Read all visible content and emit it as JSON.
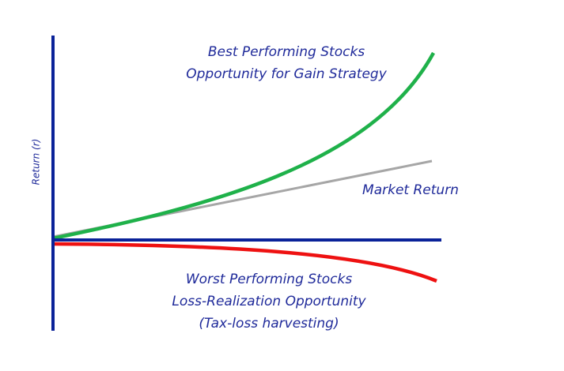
{
  "axis_label": "Return (r)",
  "annotations": {
    "best": [
      "Best Performing Stocks",
      "Opportunity for Gain Strategy"
    ],
    "market": "Market Return",
    "worst": [
      "Worst Performing Stocks",
      "Loss-Realization Opportunity",
      "(Tax-loss harvesting)"
    ]
  }
}
